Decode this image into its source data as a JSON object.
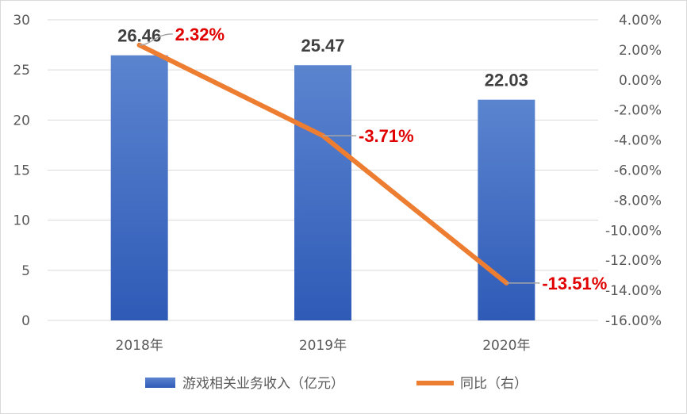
{
  "chart_data": {
    "type": "bar",
    "categories": [
      "2018年",
      "2019年",
      "2020年"
    ],
    "series": [
      {
        "name": "游戏相关业务收入（亿元）",
        "type": "bar",
        "axis": "left",
        "values": [
          26.46,
          25.47,
          22.03
        ],
        "labels": [
          "26.46",
          "25.47",
          "22.03"
        ]
      },
      {
        "name": "同比（右）",
        "type": "line",
        "axis": "right",
        "values": [
          2.32,
          -3.71,
          -13.51
        ],
        "labels": [
          "2.32%",
          "-3.71%",
          "-13.51%"
        ]
      }
    ],
    "y_left": {
      "min": 0,
      "max": 30,
      "step": 5,
      "ticks": [
        "0",
        "5",
        "10",
        "15",
        "20",
        "25",
        "30"
      ]
    },
    "y_right": {
      "min": -16,
      "max": 4,
      "step": 2,
      "ticks": [
        "-16.00%",
        "-14.00%",
        "-12.00%",
        "-10.00%",
        "-8.00%",
        "-6.00%",
        "-4.00%",
        "-2.00%",
        "0.00%",
        "2.00%",
        "4.00%"
      ]
    },
    "grid": true,
    "legend_position": "bottom",
    "colors": {
      "bar": "#4472c4",
      "line": "#ed7d31",
      "value_label": "#404040",
      "pct_label": "#e00000",
      "grid": "#d9d9d9",
      "tick": "#595959"
    }
  }
}
